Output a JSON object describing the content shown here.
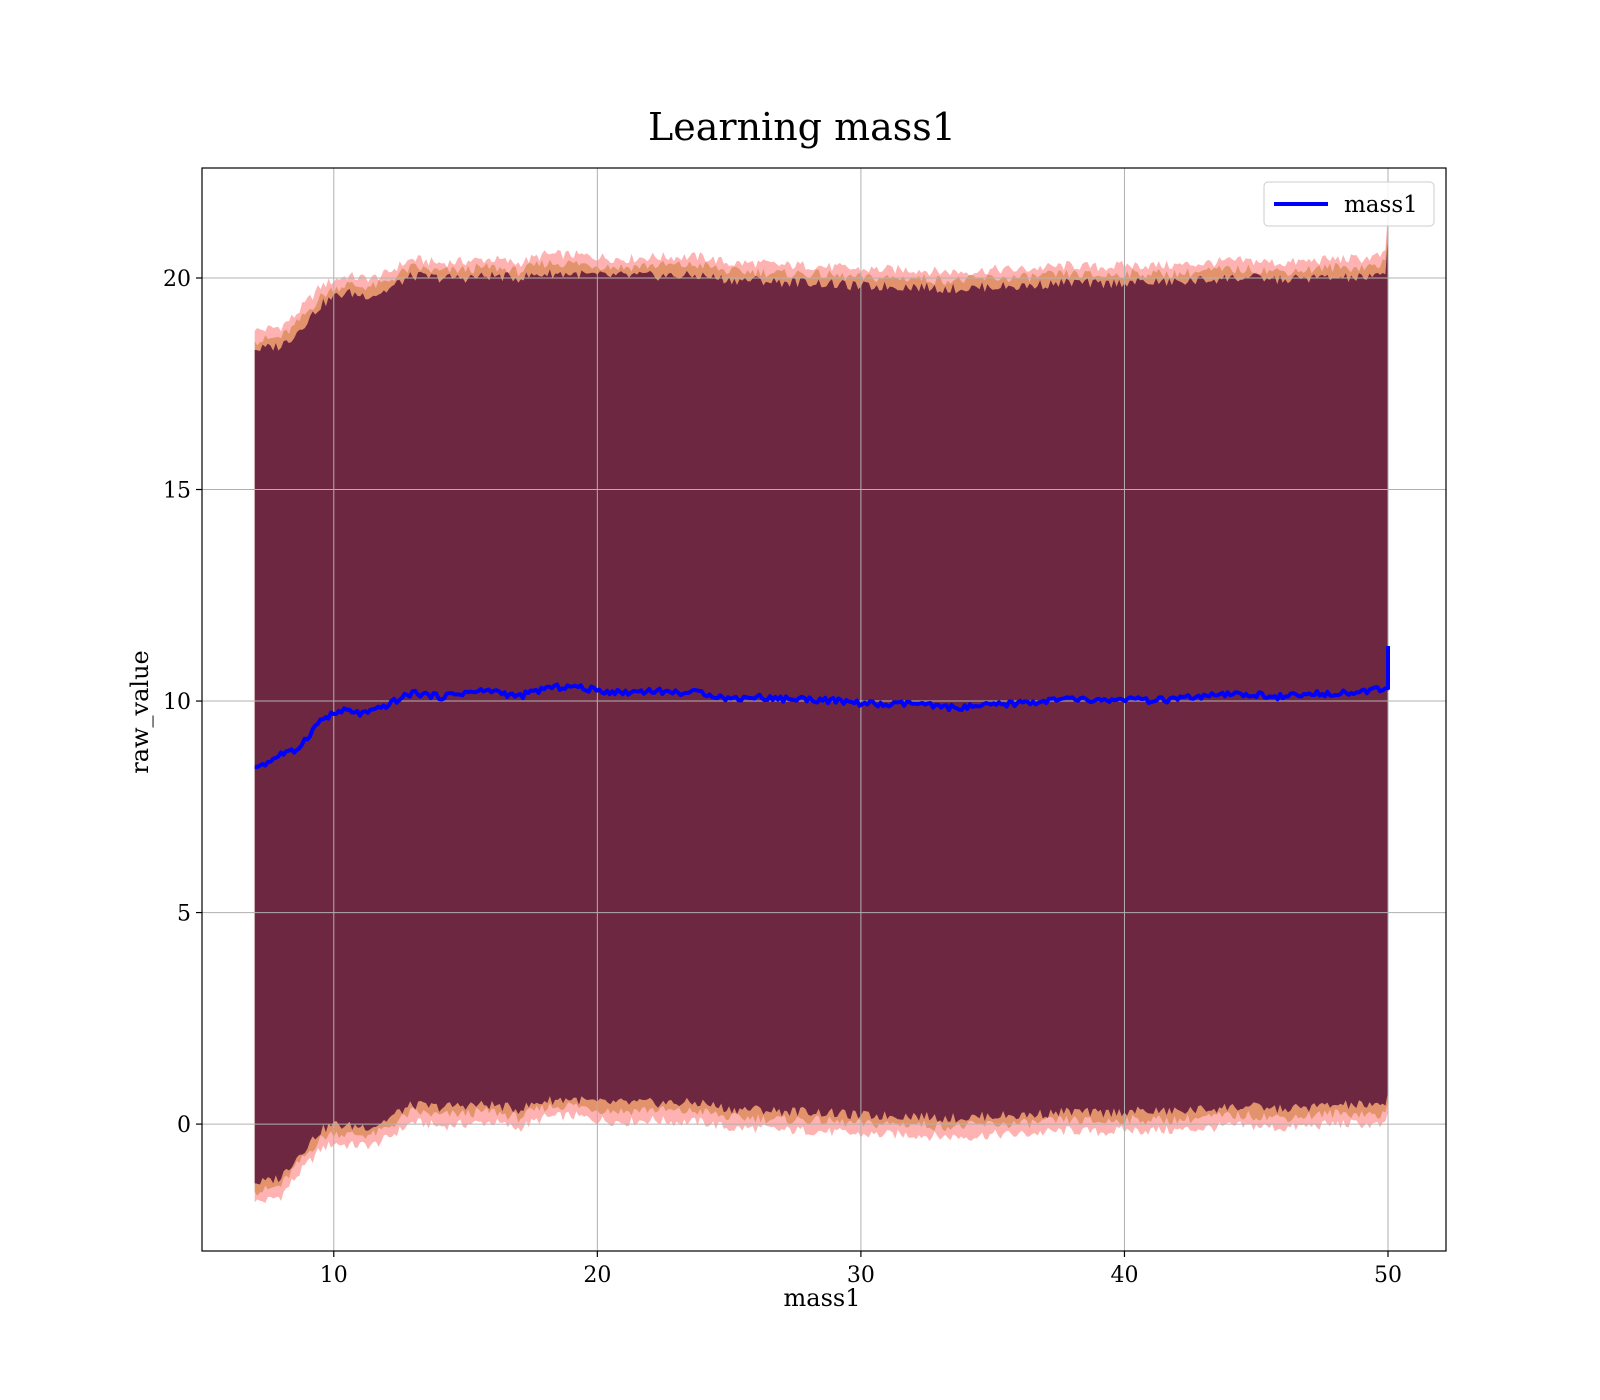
{
  "chart_data": {
    "type": "line",
    "title": "Learning mass1",
    "xlabel": "mass1",
    "ylabel": "raw_value",
    "xlim": [
      5,
      52.2
    ],
    "ylim": [
      -3,
      22.6
    ],
    "xticks": [
      10,
      20,
      30,
      40,
      50
    ],
    "yticks": [
      0,
      5,
      10,
      15,
      20
    ],
    "grid": true,
    "legend": {
      "position": "upper right",
      "entries": [
        "mass1"
      ]
    },
    "x_range": [
      7,
      50
    ],
    "series": [
      {
        "name": "mass1",
        "color": "#0000ff",
        "x": [
          7,
          7.5,
          8,
          8.5,
          9,
          9.5,
          10,
          10.5,
          11,
          11.5,
          12,
          12.5,
          13,
          14,
          15,
          16,
          17,
          18,
          19,
          20,
          21,
          22,
          23,
          24,
          25,
          26,
          27,
          28,
          29,
          30,
          31,
          32,
          33,
          34,
          35,
          36,
          37,
          38,
          39,
          40,
          41,
          42,
          43,
          44,
          45,
          46,
          47,
          48,
          49,
          49.9,
          50
        ],
        "y": [
          8.45,
          8.55,
          8.75,
          8.8,
          9.15,
          9.55,
          9.7,
          9.78,
          9.7,
          9.75,
          9.9,
          10.05,
          10.2,
          10.1,
          10.2,
          10.25,
          10.1,
          10.3,
          10.35,
          10.25,
          10.2,
          10.25,
          10.2,
          10.2,
          10.05,
          10.1,
          10.05,
          10.05,
          10.0,
          9.95,
          9.9,
          9.95,
          9.85,
          9.85,
          9.9,
          9.95,
          10.0,
          10.05,
          10.0,
          10.05,
          10.0,
          10.05,
          10.1,
          10.15,
          10.15,
          10.1,
          10.15,
          10.2,
          10.2,
          10.3,
          11.3
        ]
      }
    ],
    "bands": [
      {
        "name": "outer",
        "color": "#ff0000",
        "opacity": 0.3,
        "x": [
          7,
          7.5,
          8,
          8.5,
          9,
          9.5,
          10,
          10.5,
          11,
          11.5,
          12,
          12.5,
          13,
          14,
          15,
          16,
          17,
          18,
          19,
          20,
          21,
          22,
          23,
          24,
          25,
          26,
          27,
          28,
          29,
          30,
          31,
          32,
          33,
          34,
          35,
          36,
          37,
          38,
          39,
          40,
          41,
          42,
          43,
          44,
          45,
          46,
          47,
          48,
          49,
          49.9,
          50
        ],
        "upper": [
          18.75,
          18.8,
          18.85,
          19.1,
          19.45,
          19.8,
          19.95,
          20.05,
          20.0,
          20.0,
          20.1,
          20.3,
          20.45,
          20.35,
          20.4,
          20.45,
          20.35,
          20.55,
          20.55,
          20.5,
          20.45,
          20.5,
          20.5,
          20.5,
          20.35,
          20.35,
          20.3,
          20.3,
          20.25,
          20.2,
          20.2,
          20.2,
          20.15,
          20.15,
          20.2,
          20.2,
          20.25,
          20.3,
          20.25,
          20.3,
          20.3,
          20.3,
          20.35,
          20.4,
          20.4,
          20.35,
          20.4,
          20.45,
          20.45,
          20.55,
          21.6
        ],
        "lower": [
          -1.85,
          -1.8,
          -1.7,
          -1.3,
          -0.95,
          -0.6,
          -0.45,
          -0.5,
          -0.5,
          -0.5,
          -0.35,
          -0.15,
          0.05,
          -0.05,
          0.0,
          0.05,
          -0.1,
          0.15,
          0.2,
          0.1,
          0.05,
          0.1,
          0.05,
          0.05,
          -0.1,
          -0.1,
          -0.15,
          -0.15,
          -0.2,
          -0.25,
          -0.25,
          -0.25,
          -0.3,
          -0.3,
          -0.25,
          -0.25,
          -0.2,
          -0.15,
          -0.2,
          -0.15,
          -0.15,
          -0.15,
          -0.1,
          -0.05,
          -0.05,
          -0.1,
          -0.05,
          0.0,
          0.0,
          -0.05,
          0.3
        ]
      },
      {
        "name": "middle",
        "color": "#cc7a33",
        "opacity": 0.55,
        "x": [
          7,
          7.5,
          8,
          8.5,
          9,
          9.5,
          10,
          10.5,
          11,
          11.5,
          12,
          12.5,
          13,
          14,
          15,
          16,
          17,
          18,
          19,
          20,
          21,
          22,
          23,
          24,
          25,
          26,
          27,
          28,
          29,
          30,
          31,
          32,
          33,
          34,
          35,
          36,
          37,
          38,
          39,
          40,
          41,
          42,
          43,
          44,
          45,
          46,
          47,
          48,
          49,
          49.9,
          50
        ],
        "upper": [
          18.5,
          18.55,
          18.6,
          18.85,
          19.2,
          19.55,
          19.75,
          19.85,
          19.8,
          19.8,
          19.9,
          20.1,
          20.25,
          20.15,
          20.2,
          20.25,
          20.15,
          20.35,
          20.35,
          20.3,
          20.25,
          20.3,
          20.3,
          20.3,
          20.15,
          20.15,
          20.1,
          20.1,
          20.05,
          20.0,
          20.0,
          20.0,
          19.95,
          19.95,
          20.0,
          20.0,
          20.05,
          20.1,
          20.05,
          20.1,
          20.1,
          20.1,
          20.15,
          20.2,
          20.2,
          20.15,
          20.2,
          20.25,
          20.25,
          20.35,
          21.3
        ],
        "lower": [
          -1.6,
          -1.55,
          -1.45,
          -1.05,
          -0.7,
          -0.35,
          -0.2,
          -0.25,
          -0.25,
          -0.25,
          -0.1,
          0.1,
          0.3,
          0.2,
          0.25,
          0.3,
          0.15,
          0.4,
          0.45,
          0.35,
          0.3,
          0.35,
          0.3,
          0.3,
          0.15,
          0.15,
          0.1,
          0.1,
          0.05,
          0.0,
          0.0,
          0.0,
          -0.05,
          -0.05,
          0.0,
          0.0,
          0.05,
          0.1,
          0.05,
          0.1,
          0.1,
          0.1,
          0.15,
          0.2,
          0.2,
          0.15,
          0.2,
          0.25,
          0.25,
          0.2,
          0.55
        ]
      },
      {
        "name": "inner",
        "color": "#6e2740",
        "opacity": 1,
        "x": [
          7,
          7.5,
          8,
          8.5,
          9,
          9.5,
          10,
          10.5,
          11,
          11.5,
          12,
          12.5,
          13,
          14,
          15,
          16,
          17,
          18,
          19,
          20,
          21,
          22,
          23,
          24,
          25,
          26,
          27,
          28,
          29,
          30,
          31,
          32,
          33,
          34,
          35,
          36,
          37,
          38,
          39,
          40,
          41,
          42,
          43,
          44,
          45,
          46,
          47,
          48,
          49,
          49.9,
          50
        ],
        "upper": [
          18.3,
          18.35,
          18.4,
          18.65,
          19.0,
          19.35,
          19.55,
          19.65,
          19.6,
          19.6,
          19.7,
          19.9,
          20.05,
          20.0,
          20.0,
          20.05,
          20.0,
          20.1,
          20.1,
          20.05,
          20.05,
          20.05,
          20.05,
          20.05,
          19.95,
          19.95,
          19.9,
          19.9,
          19.85,
          19.8,
          19.8,
          19.8,
          19.75,
          19.75,
          19.8,
          19.8,
          19.85,
          19.9,
          19.85,
          19.9,
          19.9,
          19.9,
          19.95,
          20.0,
          20.0,
          19.95,
          20.0,
          20.0,
          20.0,
          20.05,
          21.0
        ],
        "lower": [
          -1.4,
          -1.35,
          -1.25,
          -0.85,
          -0.5,
          -0.15,
          0.0,
          -0.05,
          -0.05,
          -0.05,
          0.1,
          0.3,
          0.45,
          0.4,
          0.45,
          0.45,
          0.35,
          0.55,
          0.6,
          0.5,
          0.5,
          0.5,
          0.5,
          0.5,
          0.35,
          0.35,
          0.3,
          0.3,
          0.25,
          0.2,
          0.2,
          0.2,
          0.15,
          0.15,
          0.2,
          0.2,
          0.25,
          0.3,
          0.25,
          0.3,
          0.3,
          0.3,
          0.35,
          0.4,
          0.4,
          0.35,
          0.4,
          0.45,
          0.45,
          0.4,
          0.75
        ]
      }
    ]
  }
}
